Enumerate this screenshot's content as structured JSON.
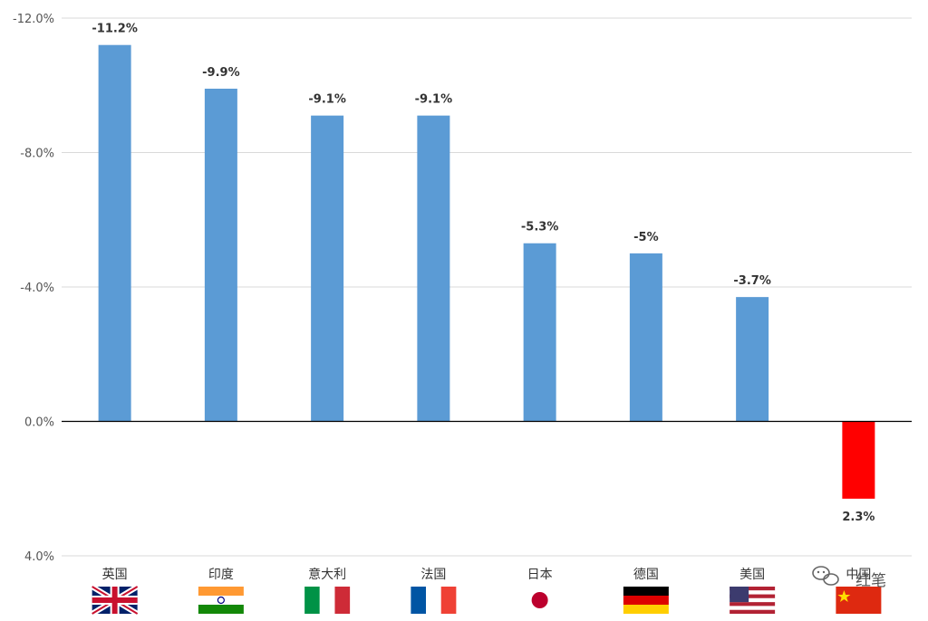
{
  "chart_data": {
    "type": "bar",
    "title": "",
    "xlabel": "",
    "ylabel": "",
    "categories": [
      "英国",
      "印度",
      "意大利",
      "法国",
      "日本",
      "德国",
      "美国",
      "中国"
    ],
    "values": [
      -11.2,
      -9.9,
      -9.1,
      -9.1,
      -5.3,
      -5.0,
      -3.7,
      2.3
    ],
    "data_labels": [
      "-11.2%",
      "-9.9%",
      "-9.1%",
      "-9.1%",
      "-5.3%",
      "-5%",
      "-3.7%",
      "2.3%"
    ],
    "y_axis": {
      "inverted": true,
      "range": [
        -12,
        4
      ],
      "ticks": [
        -12,
        -8,
        -4,
        0,
        4
      ],
      "tick_labels": [
        "-12.0%",
        "-8.0%",
        "-4.0%",
        "0.0%",
        "4.0%"
      ]
    },
    "grid": true,
    "legend": "none",
    "colors": {
      "negative_bar": "#5B9BD5",
      "positive_bar": "#FF0000",
      "gridline": "#D9D9D9",
      "zero_line": "#000000"
    },
    "category_flags": [
      "uk-flag-icon",
      "india-flag-icon",
      "italy-flag-icon",
      "france-flag-icon",
      "japan-flag-icon",
      "germany-flag-icon",
      "usa-flag-icon",
      "china-flag-icon"
    ]
  },
  "watermark": {
    "icon": "wechat-icon",
    "text": "红笔"
  }
}
